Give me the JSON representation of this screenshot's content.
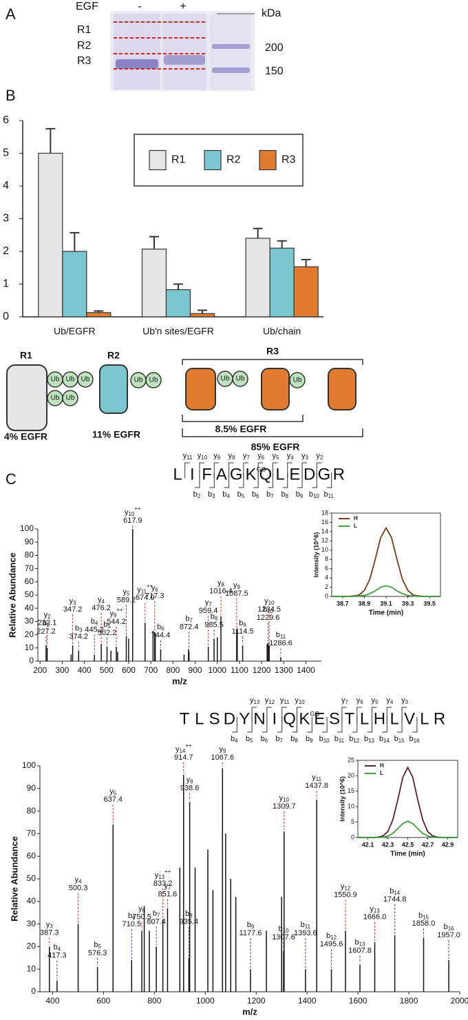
{
  "panels": [
    "A",
    "B",
    "C"
  ],
  "gel": {
    "treatment": "EGF",
    "lanes": [
      "-",
      "+"
    ],
    "unit": "kDa",
    "regions": [
      "R1",
      "R2",
      "R3"
    ],
    "markers": [
      200,
      150
    ]
  },
  "ion_colors": {
    "b": "#2a3f9e",
    "y": "#d42a1c"
  },
  "chart_data": [
    {
      "type": "bar",
      "categories": [
        "Ub/EGFR",
        "Ub'n sites/EGFR",
        "Ub/chain"
      ],
      "series": [
        {
          "name": "R1",
          "color": "#e6e6e6",
          "values": [
            5.0,
            2.07,
            2.4
          ],
          "error": [
            0.75,
            0.38,
            0.3
          ]
        },
        {
          "name": "R2",
          "color": "#7cc6cf",
          "values": [
            2.0,
            0.83,
            2.1
          ],
          "error": [
            0.57,
            0.17,
            0.22
          ]
        },
        {
          "name": "R3",
          "color": "#e07b30",
          "values": [
            0.13,
            0.1,
            1.53
          ],
          "error": [
            0.05,
            0.1,
            0.22
          ]
        }
      ],
      "ylim": [
        0,
        6
      ],
      "yticks": [
        0,
        1,
        2,
        3,
        4,
        5,
        6
      ],
      "legend": "top-right"
    },
    {
      "type": "spectrum",
      "xlabel": "m/z",
      "ylabel": "Relative Abundance",
      "color": "#111111",
      "xlim": [
        190,
        1470
      ],
      "xticks": [
        200,
        300,
        400,
        500,
        600,
        700,
        800,
        900,
        1000,
        1100,
        1200,
        1300,
        1400
      ],
      "ylim": [
        0,
        100
      ],
      "yticks": [
        0,
        10,
        20,
        30,
        40,
        50,
        60,
        70,
        80,
        90,
        100
      ],
      "x": [
        340,
        520,
        550,
        600,
        710,
        720,
        850,
        870,
        1000,
        1090,
        1225
      ],
      "values": [
        5,
        8,
        7,
        17,
        23,
        21,
        5,
        9,
        18,
        22,
        13
      ],
      "annotations": [
        {
          "x": 227.2,
          "y": 12,
          "ion": "b",
          "n": 2,
          "label": "227.2"
        },
        {
          "x": 232.1,
          "y": 10,
          "ion": "y",
          "n": 2,
          "label": "232.1"
        },
        {
          "x": 347.2,
          "y": 12,
          "ion": "y",
          "n": 3,
          "label": "347.2"
        },
        {
          "x": 374.2,
          "y": 8,
          "ion": "b",
          "n": 3,
          "label": "374.2"
        },
        {
          "x": 445.2,
          "y": 5,
          "ion": "b",
          "n": 4,
          "label": "445.2"
        },
        {
          "x": 476.2,
          "y": 13,
          "ion": "y",
          "n": 4,
          "label": "476.2"
        },
        {
          "x": 502.2,
          "y": 11,
          "ion": "b",
          "n": 5,
          "label": "502.2"
        },
        {
          "x": 544.2,
          "y": 11,
          "ion": "y",
          "n": 9,
          "charge": "++",
          "label": "544.2"
        },
        {
          "x": 589.2,
          "y": 19,
          "ion": "y",
          "n": 5,
          "label": "589.2"
        },
        {
          "x": 617.9,
          "y": 100,
          "ion": "y",
          "n": 10,
          "charge": "++",
          "label": "617.9"
        },
        {
          "x": 674.0,
          "y": 29,
          "ion": "y",
          "n": 11,
          "charge": "++",
          "label": "674.0"
        },
        {
          "x": 717.3,
          "y": 22,
          "ion": "y",
          "n": 6,
          "label": "717.3"
        },
        {
          "x": 744.4,
          "y": 9,
          "ion": "b",
          "n": 6,
          "label": "744.4"
        },
        {
          "x": 872.4,
          "y": 7,
          "ion": "b",
          "n": 7,
          "label": "872.4"
        },
        {
          "x": 959.4,
          "y": 11,
          "ion": "y",
          "n": 7,
          "label": "959.4"
        },
        {
          "x": 985.5,
          "y": 17,
          "ion": "b",
          "n": 8,
          "label": "985.5"
        },
        {
          "x": 1016.4,
          "y": 34,
          "ion": "y",
          "n": 8,
          "label": "1016.4"
        },
        {
          "x": 1087.5,
          "y": 24,
          "ion": "y",
          "n": 9,
          "label": "1087.5"
        },
        {
          "x": 1114.5,
          "y": 12,
          "ion": "b",
          "n": 9,
          "label": "1114.5"
        },
        {
          "x": 1229.6,
          "y": 14,
          "ion": "b",
          "n": 10,
          "label": "1229.6"
        },
        {
          "x": 1234.5,
          "y": 12,
          "ion": "y",
          "n": 10,
          "label": "1234.5"
        },
        {
          "x": 1286.6,
          "y": 3,
          "ion": "b",
          "n": 11,
          "label": "1286.6"
        }
      ]
    },
    {
      "type": "line",
      "xlabel": "Time (min)",
      "ylabel": "Intensity (10^6)",
      "legend": "top-left",
      "x": [
        38.6,
        38.65,
        38.7,
        38.75,
        38.8,
        38.85,
        38.9,
        38.95,
        39.0,
        39.05,
        39.1,
        39.15,
        39.2,
        39.25,
        39.3,
        39.35,
        39.4,
        39.45,
        39.5,
        39.55,
        39.6
      ],
      "xlim": [
        38.6,
        39.6
      ],
      "xticks": [
        38.7,
        38.9,
        39.1,
        39.3,
        39.5
      ],
      "ylim": [
        0,
        18
      ],
      "yticks": [
        0,
        2,
        4,
        6,
        8,
        10,
        12,
        14,
        16,
        18
      ],
      "series": [
        {
          "name": "H",
          "color": "#7b3a1a",
          "values": [
            0,
            0,
            0,
            0,
            0.1,
            0.3,
            1.3,
            3.7,
            8.0,
            12.7,
            14.8,
            12.7,
            8.0,
            3.7,
            1.3,
            0.3,
            0.1,
            0,
            0,
            0,
            0
          ]
        },
        {
          "name": "L",
          "color": "#3f9b3f",
          "values": [
            0,
            0,
            0,
            0,
            0,
            0.1,
            0.2,
            0.6,
            1.2,
            2.0,
            2.3,
            2.0,
            1.2,
            0.6,
            0.2,
            0.1,
            0,
            0,
            0,
            0,
            0
          ]
        }
      ]
    },
    {
      "type": "spectrum",
      "xlabel": "m/z",
      "ylabel": "Relative Abundance",
      "color": "#111111",
      "xlim": [
        350,
        2000
      ],
      "xticks": [
        400,
        600,
        800,
        1000,
        1200,
        1400,
        1600,
        1800,
        2000
      ],
      "ylim": [
        0,
        100
      ],
      "yticks": [
        0,
        10,
        20,
        30,
        40,
        50,
        60,
        70,
        80,
        90,
        100
      ],
      "x": [
        760,
        780,
        900,
        960,
        1010,
        1030,
        1080,
        1100,
        1120,
        1240,
        1300
      ],
      "values": [
        38,
        27,
        55,
        55,
        63,
        45,
        70,
        50,
        42,
        27,
        42
      ],
      "annotations": [
        {
          "x": 387.3,
          "y": 20,
          "ion": "y",
          "n": 3,
          "label": "387.3"
        },
        {
          "x": 417.3,
          "y": 5,
          "ion": "b",
          "n": 4,
          "label": "417.3"
        },
        {
          "x": 500.3,
          "y": 30,
          "ion": "y",
          "n": 4,
          "label": "500.3"
        },
        {
          "x": 576.3,
          "y": 11,
          "ion": "b",
          "n": 5,
          "label": "576.3"
        },
        {
          "x": 637.4,
          "y": 74,
          "ion": "y",
          "n": 5,
          "label": "637.4"
        },
        {
          "x": 710.5,
          "y": 14,
          "ion": "b",
          "n": 6,
          "label": "710.5"
        },
        {
          "x": 750.5,
          "y": 27,
          "ion": "y",
          "n": 6,
          "label": "750.5"
        },
        {
          "x": 807.4,
          "y": 20,
          "ion": "b",
          "n": 7,
          "label": "807.4"
        },
        {
          "x": 833.2,
          "y": 32,
          "ion": "y",
          "n": 13,
          "charge": "++",
          "label": "833.2"
        },
        {
          "x": 851.6,
          "y": 37,
          "ion": "y",
          "n": 7,
          "label": "851.6"
        },
        {
          "x": 914.7,
          "y": 96,
          "ion": "y",
          "n": 14,
          "charge": "++",
          "label": "914.7"
        },
        {
          "x": 935.4,
          "y": 15,
          "ion": "b",
          "n": 8,
          "label": "935.4"
        },
        {
          "x": 938.6,
          "y": 84,
          "ion": "y",
          "n": 8,
          "label": "938.6"
        },
        {
          "x": 1067.6,
          "y": 99,
          "ion": "y",
          "n": 9,
          "label": "1067.6"
        },
        {
          "x": 1177.6,
          "y": 10,
          "ion": "b",
          "n": 9,
          "label": "1177.6"
        },
        {
          "x": 1307.6,
          "y": 18,
          "ion": "b",
          "n": 10,
          "label": "1307.6"
        },
        {
          "x": 1309.7,
          "y": 71,
          "ion": "y",
          "n": 10,
          "label": "1309.7"
        },
        {
          "x": 1393.6,
          "y": 10,
          "ion": "b",
          "n": 11,
          "label": "1393.6"
        },
        {
          "x": 1437.8,
          "y": 85,
          "ion": "y",
          "n": 11,
          "label": "1437.8"
        },
        {
          "x": 1495.6,
          "y": 10,
          "ion": "b",
          "n": 12,
          "label": "1495.6"
        },
        {
          "x": 1550.9,
          "y": 27,
          "ion": "y",
          "n": 12,
          "label": "1550.9"
        },
        {
          "x": 1607.8,
          "y": 12,
          "ion": "b",
          "n": 13,
          "label": "1607.8"
        },
        {
          "x": 1666.0,
          "y": 22,
          "ion": "y",
          "n": 13,
          "label": "1666.0"
        },
        {
          "x": 1744.8,
          "y": 25,
          "ion": "b",
          "n": 14,
          "label": "1744.8"
        },
        {
          "x": 1858.0,
          "y": 24,
          "ion": "b",
          "n": 15,
          "label": "1858.0"
        },
        {
          "x": 1957.0,
          "y": 14,
          "ion": "b",
          "n": 16,
          "label": "1957.0"
        }
      ]
    },
    {
      "type": "line",
      "xlabel": "Time (min)",
      "ylabel": "Intensity (10^6)",
      "legend": "top-left",
      "x": [
        42.0,
        42.05,
        42.1,
        42.15,
        42.2,
        42.25,
        42.3,
        42.35,
        42.4,
        42.45,
        42.5,
        42.55,
        42.6,
        42.65,
        42.7,
        42.75,
        42.8,
        42.85,
        42.9,
        42.95,
        43.0
      ],
      "xlim": [
        42.0,
        43.0
      ],
      "xticks": [
        42.1,
        42.3,
        42.5,
        42.7,
        42.9
      ],
      "ylim": [
        0,
        25
      ],
      "yticks": [
        0,
        5,
        10,
        15,
        20,
        25
      ],
      "series": [
        {
          "name": "H",
          "color": "#5a1f2a",
          "values": [
            0,
            0,
            0,
            0,
            0.1,
            0.5,
            1.9,
            5.7,
            12.2,
            19.5,
            22.7,
            19.5,
            12.2,
            5.7,
            1.9,
            0.5,
            0.1,
            0,
            0,
            0,
            0
          ]
        },
        {
          "name": "L",
          "color": "#3f9b3f",
          "values": [
            0,
            0,
            0,
            0,
            0,
            0.1,
            0.5,
            1.3,
            2.9,
            4.5,
            5.3,
            4.5,
            2.9,
            1.3,
            0.5,
            0.1,
            0,
            0,
            0,
            0,
            0
          ]
        }
      ]
    }
  ],
  "schematic": {
    "ub_label": "Ub",
    "groups": [
      {
        "name": "R1",
        "note": "4% EGFR"
      },
      {
        "name": "R2",
        "note": "11% EGFR"
      },
      {
        "name": "R3",
        "notes": [
          "8.5% EGFR",
          "85% EGFR"
        ]
      }
    ]
  },
  "peptides": [
    {
      "residues": [
        {
          "aa": "L"
        },
        {
          "aa": "I"
        },
        {
          "aa": "F"
        },
        {
          "aa": "A"
        },
        {
          "aa": "G"
        },
        {
          "aa": "K",
          "mod": "GG"
        },
        {
          "aa": "Q"
        },
        {
          "aa": "L"
        },
        {
          "aa": "E"
        },
        {
          "aa": "D"
        },
        {
          "aa": "G"
        },
        {
          "aa": "R"
        }
      ],
      "y_ions": [
        {
          "ion": "y",
          "n": 11
        },
        {
          "ion": "y",
          "n": 10
        },
        {
          "ion": "y",
          "n": 9
        },
        {
          "ion": "y",
          "n": 8
        },
        {
          "ion": "y",
          "n": 7
        },
        {
          "ion": "y",
          "n": 6
        },
        {
          "ion": "y",
          "n": 5
        },
        {
          "ion": "y",
          "n": 4
        },
        {
          "ion": "y",
          "n": 3
        },
        {
          "ion": "y",
          "n": 2
        }
      ],
      "b_ions": [
        {
          "ion": "b",
          "n": 2
        },
        {
          "ion": "b",
          "n": 3
        },
        {
          "ion": "b",
          "n": 4
        },
        {
          "ion": "b",
          "n": 5
        },
        {
          "ion": "b",
          "n": 6
        },
        {
          "ion": "b",
          "n": 7
        },
        {
          "ion": "b",
          "n": 8
        },
        {
          "ion": "b",
          "n": 9
        },
        {
          "ion": "b",
          "n": 10
        },
        {
          "ion": "b",
          "n": 11
        }
      ]
    },
    {
      "residues": [
        {
          "aa": "T"
        },
        {
          "aa": "L"
        },
        {
          "aa": "S"
        },
        {
          "aa": "D"
        },
        {
          "aa": "Y"
        },
        {
          "aa": "N"
        },
        {
          "aa": "I"
        },
        {
          "aa": "Q"
        },
        {
          "aa": "K",
          "mod": "GG"
        },
        {
          "aa": "E"
        },
        {
          "aa": "S"
        },
        {
          "aa": "T"
        },
        {
          "aa": "L"
        },
        {
          "aa": "H"
        },
        {
          "aa": "L"
        },
        {
          "aa": "V"
        },
        {
          "aa": "L"
        },
        {
          "aa": "R"
        }
      ],
      "y_ions": [
        {
          "ion": "y",
          "n": 13
        },
        {
          "ion": "y",
          "n": 12
        },
        {
          "ion": "y",
          "n": 11
        },
        {
          "ion": "y",
          "n": 10
        },
        {
          "ion": "y",
          "n": 7
        },
        {
          "ion": "y",
          "n": 6
        },
        {
          "ion": "y",
          "n": 5
        },
        {
          "ion": "y",
          "n": 4
        },
        {
          "ion": "y",
          "n": 3
        }
      ],
      "b_ions": [
        {
          "ion": "b",
          "n": 4
        },
        {
          "ion": "b",
          "n": 5
        },
        {
          "ion": "b",
          "n": 6
        },
        {
          "ion": "b",
          "n": 7
        },
        {
          "ion": "b",
          "n": 8
        },
        {
          "ion": "b",
          "n": 9
        },
        {
          "ion": "b",
          "n": 10
        },
        {
          "ion": "b",
          "n": 11
        },
        {
          "ion": "b",
          "n": 12
        },
        {
          "ion": "b",
          "n": 13
        },
        {
          "ion": "b",
          "n": 14
        },
        {
          "ion": "b",
          "n": 15
        },
        {
          "ion": "b",
          "n": 16
        }
      ]
    }
  ]
}
